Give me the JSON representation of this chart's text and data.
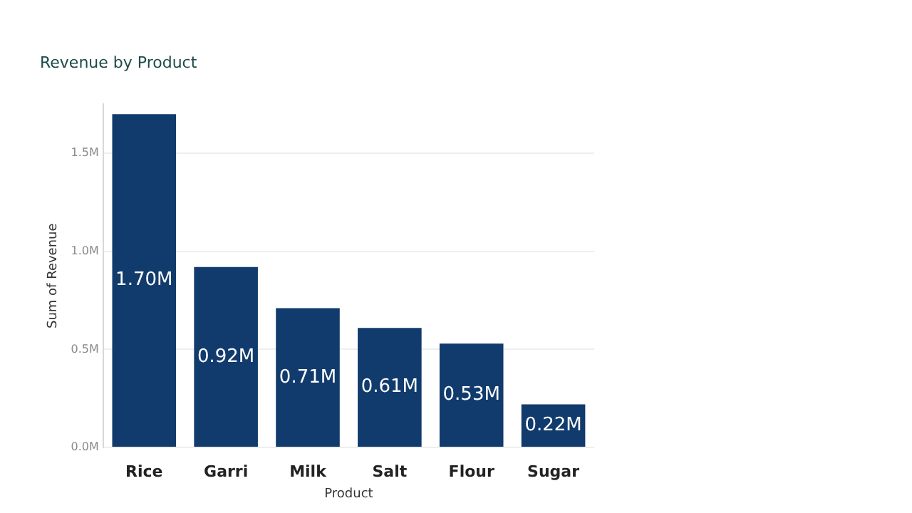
{
  "chart_data": {
    "type": "bar",
    "title": "Revenue by Product",
    "xlabel": "Product",
    "ylabel": "Sum of Revenue",
    "categories": [
      "Rice",
      "Garri",
      "Milk",
      "Salt",
      "Flour",
      "Sugar"
    ],
    "values": [
      1.7,
      0.92,
      0.71,
      0.61,
      0.53,
      0.22
    ],
    "value_labels": [
      "1.70M",
      "0.92M",
      "0.71M",
      "0.61M",
      "0.53M",
      "0.22M"
    ],
    "color": "#123b6d",
    "ylim": [
      0,
      1.75
    ],
    "yticks": [
      {
        "value": 0,
        "label": "0.0M"
      },
      {
        "value": 0.5,
        "label": "0.5M"
      },
      {
        "value": 1,
        "label": "1.0M"
      },
      {
        "value": 1.5,
        "label": "1.5M"
      }
    ],
    "grid": "y",
    "legend": false
  }
}
